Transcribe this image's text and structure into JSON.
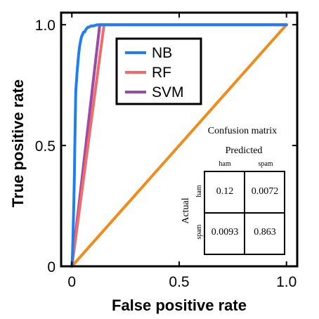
{
  "chart_data": {
    "type": "line",
    "title": "",
    "xlabel": "False positive rate",
    "ylabel": "True positive rate",
    "xlim": [
      -0.05,
      1.05
    ],
    "ylim": [
      0,
      1.05
    ],
    "xticks": [
      0,
      0.5,
      1.0
    ],
    "xtick_labels": [
      "0",
      "0.5",
      "1.0"
    ],
    "yticks": [
      0,
      0.5,
      1.0
    ],
    "ytick_labels": [
      "0",
      "0.5",
      "1.0"
    ],
    "grid": false,
    "legend_position": "top-left",
    "series": [
      {
        "name": "NB",
        "color": "#1e80f0",
        "x": [
          0.0,
          0.003,
          0.006,
          0.009,
          0.012,
          0.014,
          0.016,
          0.018,
          0.02,
          0.022,
          0.024,
          0.026,
          0.029,
          0.032,
          0.036,
          0.04,
          0.045,
          0.05,
          0.055,
          0.06,
          0.065,
          0.07,
          0.075,
          0.08,
          0.09,
          0.1,
          0.12,
          1.0
        ],
        "y": [
          0.0,
          0.05,
          0.15,
          0.25,
          0.38,
          0.5,
          0.62,
          0.72,
          0.75,
          0.77,
          0.8,
          0.82,
          0.85,
          0.88,
          0.91,
          0.93,
          0.95,
          0.96,
          0.97,
          0.97,
          0.98,
          0.985,
          0.99,
          0.99,
          0.995,
          0.995,
          1.0,
          1.0
        ]
      },
      {
        "name": "RF",
        "color": "#f26b6b",
        "x": [
          0.0,
          0.15,
          1.0
        ],
        "y": [
          0.0,
          1.0,
          1.0
        ]
      },
      {
        "name": "SVM",
        "color": "#9b4aa8",
        "x": [
          0.0,
          0.13,
          1.0
        ],
        "y": [
          0.0,
          1.0,
          1.0
        ]
      },
      {
        "name": "",
        "color": "#f08c1c",
        "x": [
          0.0,
          1.0
        ],
        "y": [
          0.0,
          1.0
        ]
      }
    ]
  },
  "confusion_matrix": {
    "title": "Confusion matrix",
    "predicted_label": "Predicted",
    "actual_label": "Actual",
    "col_labels": [
      "ham",
      "spam"
    ],
    "row_labels": [
      "ham",
      "spam"
    ],
    "cells": [
      [
        "0.12",
        "0.0072"
      ],
      [
        "0.0093",
        "0.863"
      ]
    ]
  }
}
